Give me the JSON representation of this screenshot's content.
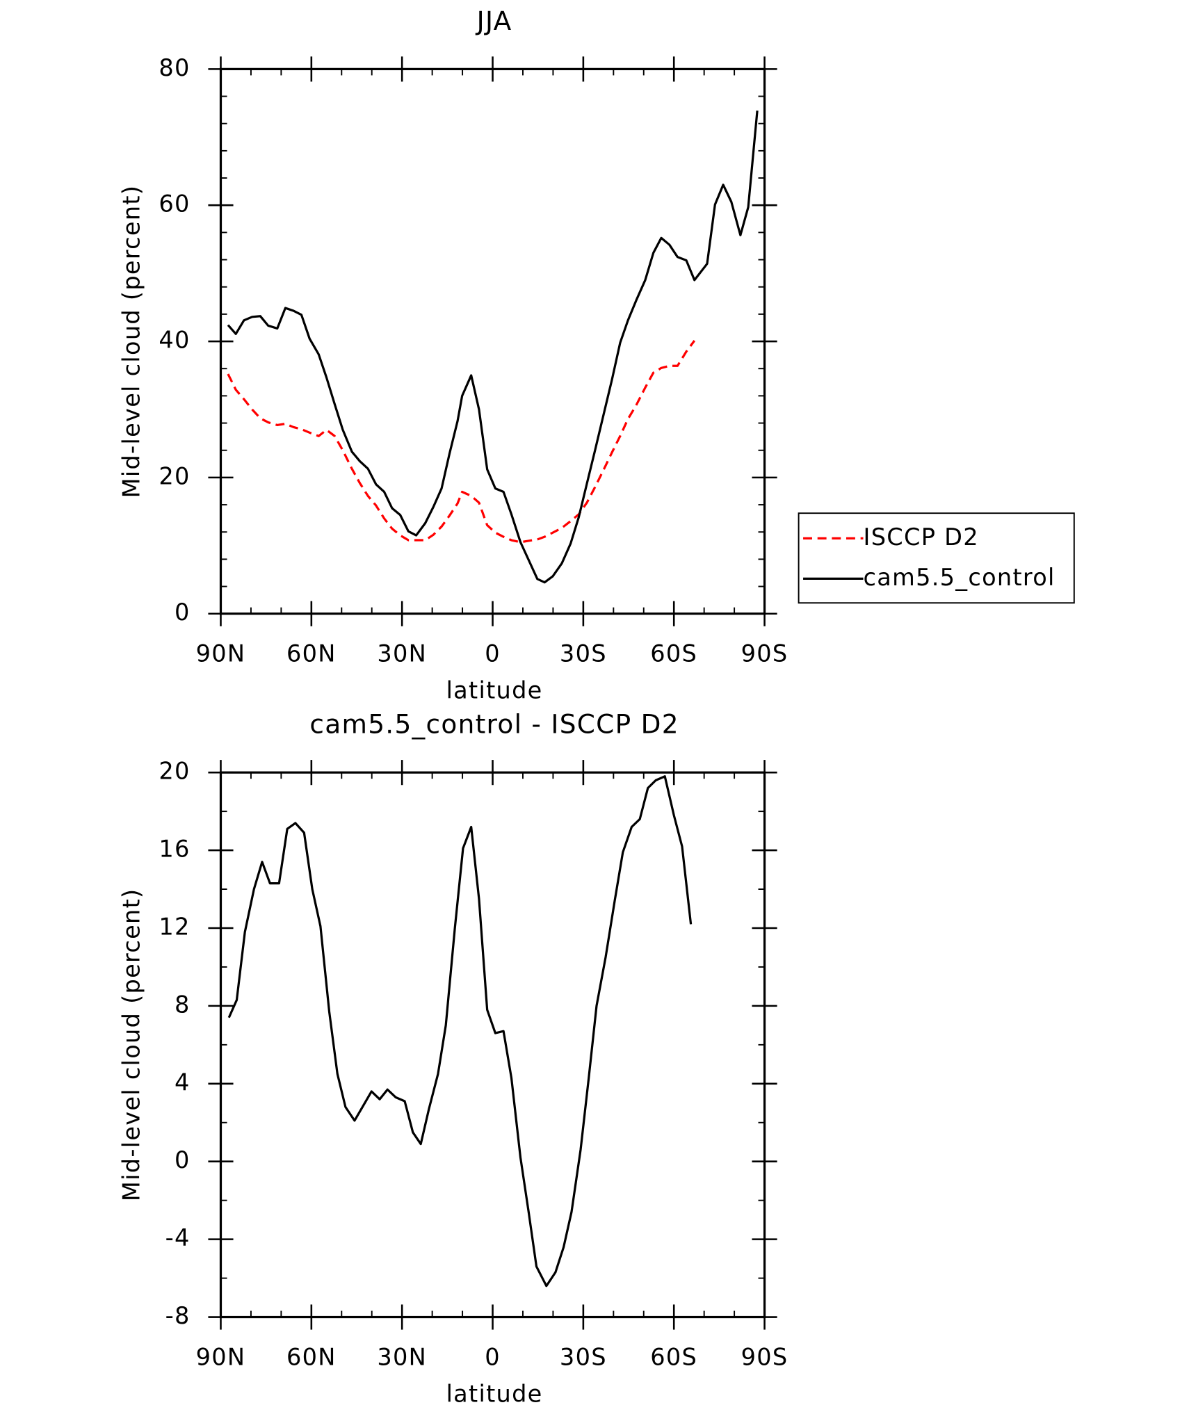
{
  "chart_data": [
    {
      "type": "line",
      "title": "JJA",
      "xlabel": "latitude",
      "ylabel": "Mid-level cloud (percent)",
      "x": [
        87.6,
        85.0,
        82.3,
        79.6,
        76.9,
        74.3,
        71.3,
        68.6,
        65.9,
        63.3,
        60.6,
        57.6,
        55.0,
        52.3,
        49.6,
        46.6,
        44.0,
        41.3,
        38.6,
        35.9,
        33.3,
        30.6,
        27.9,
        25.3,
        22.3,
        19.6,
        16.9,
        14.3,
        11.6,
        10.1,
        7.1,
        4.5,
        1.8,
        -0.9,
        -3.6,
        -6.2,
        -9.2,
        -11.9,
        -14.8,
        -17.2,
        -19.9,
        -22.9,
        -25.8,
        -28.5,
        -31.2,
        -33.9,
        -36.8,
        -39.5,
        -42.2,
        -44.8,
        -47.5,
        -50.5,
        -53.2,
        -55.8,
        -58.5,
        -61.2,
        -64.1,
        -66.8,
        -71.0,
        -73.6,
        -76.3,
        -79.0,
        -82.0,
        -84.6,
        -87.6
      ],
      "series": [
        {
          "name": "ISCCP D2",
          "color": "#ff0000",
          "dash": "dashed",
          "values": [
            35.2,
            32.9,
            31.5,
            30.0,
            28.7,
            28.1,
            27.7,
            27.9,
            27.4,
            27.1,
            26.6,
            26.1,
            27.0,
            26.1,
            24.0,
            21.3,
            19.2,
            17.3,
            15.9,
            14.0,
            12.5,
            11.5,
            10.8,
            10.8,
            10.8,
            11.6,
            12.8,
            14.4,
            16.2,
            17.9,
            17.3,
            16.3,
            13.0,
            11.9,
            11.3,
            10.8,
            10.5,
            10.7,
            10.9,
            11.3,
            11.9,
            12.6,
            13.6,
            14.6,
            16.3,
            18.6,
            21.2,
            23.7,
            26.1,
            28.6,
            30.6,
            33.2,
            35.4,
            36.1,
            36.4,
            36.4,
            38.5,
            40.1,
            null,
            null,
            null,
            null,
            null,
            null,
            null
          ]
        },
        {
          "name": "cam5.5_control",
          "color": "#000000",
          "dash": "solid",
          "values": [
            42.4,
            41.1,
            43.1,
            43.6,
            43.7,
            42.3,
            41.9,
            44.9,
            44.5,
            43.9,
            40.4,
            38.1,
            34.7,
            30.8,
            27.0,
            23.8,
            22.4,
            21.3,
            19.0,
            17.9,
            15.5,
            14.5,
            12.1,
            11.5,
            13.3,
            15.7,
            18.4,
            23.5,
            28.3,
            32.0,
            35.0,
            30.0,
            21.2,
            18.4,
            17.9,
            14.6,
            10.5,
            7.9,
            5.1,
            4.6,
            5.5,
            7.4,
            10.3,
            14.2,
            19.1,
            24.0,
            29.4,
            34.4,
            39.8,
            43.1,
            46.0,
            49.0,
            53.0,
            55.2,
            54.2,
            52.4,
            51.9,
            49.0,
            51.4,
            60.1,
            63.0,
            60.5,
            55.6,
            59.7,
            73.9
          ]
        }
      ],
      "xlim": [
        90,
        -90
      ],
      "xticks": [
        {
          "value": 90,
          "label": "90N"
        },
        {
          "value": 60,
          "label": "60N"
        },
        {
          "value": 30,
          "label": "30N"
        },
        0,
        {
          "value": -30,
          "label": "30S"
        },
        {
          "value": -60,
          "label": "60S"
        },
        {
          "value": -90,
          "label": "90S"
        }
      ],
      "ylim": [
        0,
        80
      ],
      "yticks": [
        0,
        20,
        40,
        60,
        80
      ],
      "legend": "right"
    },
    {
      "type": "line",
      "title": "cam5.5_control - ISCCP D2",
      "xlabel": "latitude",
      "ylabel": "Mid-level cloud (percent)",
      "x": [
        87.3,
        84.7,
        82.0,
        79.0,
        76.3,
        73.7,
        70.7,
        68.0,
        65.3,
        62.4,
        59.7,
        57.0,
        54.1,
        51.4,
        48.7,
        45.7,
        43.1,
        40.1,
        37.4,
        34.8,
        32.1,
        29.1,
        26.4,
        23.8,
        21.1,
        18.1,
        15.5,
        12.5,
        9.8,
        7.1,
        4.5,
        1.8,
        -0.9,
        -3.6,
        -6.2,
        -9.2,
        -11.9,
        -14.5,
        -17.8,
        -20.8,
        -23.5,
        -26.1,
        -29.1,
        -31.8,
        -34.4,
        -37.4,
        -40.4,
        -43.1,
        -46.0,
        -48.7,
        -51.4,
        -54.0,
        -57.0,
        -60.0,
        -62.7,
        -65.6
      ],
      "values": [
        7.4,
        8.3,
        11.8,
        14.0,
        15.4,
        14.3,
        14.3,
        17.1,
        17.4,
        16.9,
        14.0,
        12.1,
        7.7,
        4.5,
        2.8,
        2.1,
        2.8,
        3.6,
        3.2,
        3.7,
        3.3,
        3.1,
        1.5,
        0.9,
        2.7,
        4.5,
        7.0,
        12.0,
        16.1,
        17.2,
        13.5,
        7.8,
        6.6,
        6.7,
        4.3,
        0.2,
        -2.6,
        -5.4,
        -6.4,
        -5.7,
        -4.4,
        -2.6,
        0.6,
        4.3,
        8.0,
        10.5,
        13.4,
        15.9,
        17.2,
        17.6,
        19.2,
        19.6,
        19.8,
        17.8,
        16.2,
        12.2
      ],
      "color": "#000000",
      "xlim": [
        90,
        -90
      ],
      "xticks": [
        {
          "value": 90,
          "label": "90N"
        },
        {
          "value": 60,
          "label": "60N"
        },
        {
          "value": 30,
          "label": "30N"
        },
        0,
        {
          "value": -30,
          "label": "30S"
        },
        {
          "value": -60,
          "label": "60S"
        },
        {
          "value": -90,
          "label": "90S"
        }
      ],
      "ylim": [
        -8,
        20
      ],
      "yticks": [
        -8,
        -4,
        0,
        4,
        8,
        12,
        16,
        20
      ]
    }
  ]
}
